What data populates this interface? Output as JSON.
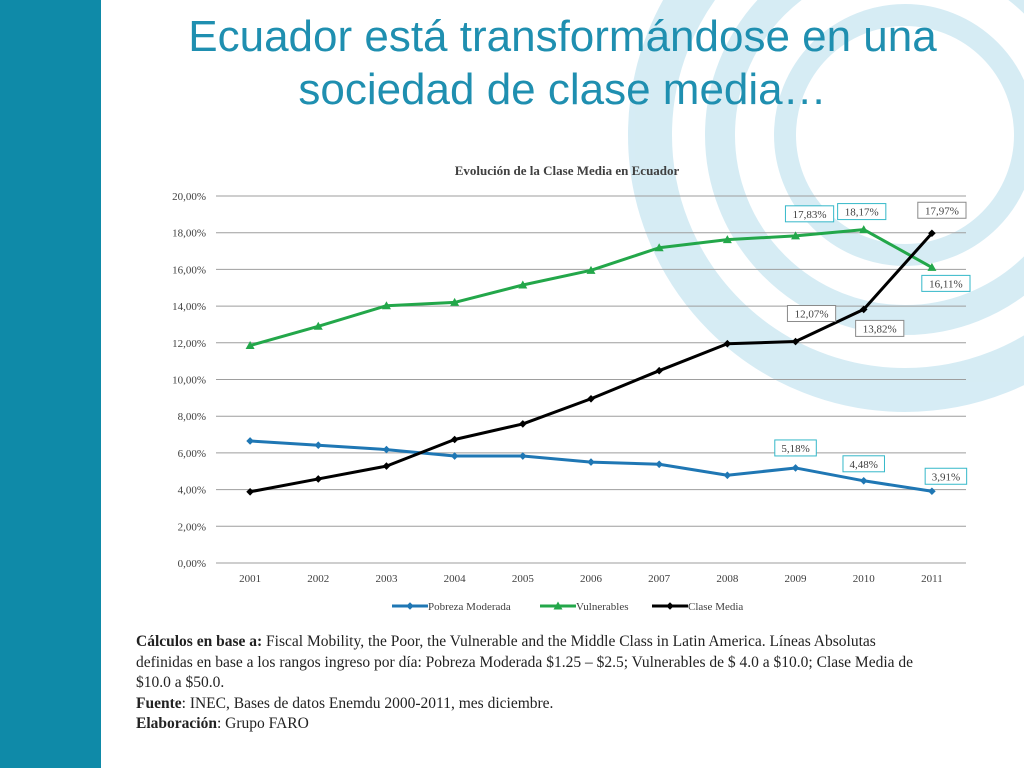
{
  "slide": {
    "title_line1": "Ecuador está transformándose en una",
    "title_line2": "sociedad de clase media…"
  },
  "colors": {
    "accent_bar": "#0f8aa8",
    "title": "#1f8fb0",
    "pobreza": "#1f77b4",
    "vulnerables": "#23a74a",
    "clase_media": "#000000",
    "grid": "#9e9e9e"
  },
  "chart_data": {
    "type": "line",
    "title": "Evolución de la Clase Media en Ecuador",
    "xlabel": "",
    "ylabel": "",
    "ylim": [
      0,
      20
    ],
    "y_tick_labels": [
      "0,00%",
      "2,00%",
      "4,00%",
      "6,00%",
      "8,00%",
      "10,00%",
      "12,00%",
      "14,00%",
      "16,00%",
      "18,00%",
      "20,00%"
    ],
    "categories": [
      "2001",
      "2002",
      "2003",
      "2004",
      "2005",
      "2006",
      "2007",
      "2008",
      "2009",
      "2010",
      "2011"
    ],
    "grid": true,
    "legend_position": "bottom",
    "series": [
      {
        "name": "Pobreza Moderada",
        "marker": "diamond",
        "color": "#1f77b4",
        "values": [
          6.65,
          6.42,
          6.18,
          5.83,
          5.83,
          5.5,
          5.38,
          4.78,
          5.18,
          4.48,
          3.91
        ],
        "labels": [
          {
            "index": 8,
            "text": "5,18%"
          },
          {
            "index": 9,
            "text": "4,48%"
          },
          {
            "index": 10,
            "text": "3,91%"
          }
        ]
      },
      {
        "name": "Vulnerables",
        "marker": "triangle",
        "color": "#23a74a",
        "values": [
          11.85,
          12.9,
          14.02,
          14.2,
          15.15,
          15.95,
          17.18,
          17.62,
          17.83,
          18.17,
          16.11
        ],
        "labels": [
          {
            "index": 8,
            "text": "17,83%"
          },
          {
            "index": 9,
            "text": "18,17%"
          },
          {
            "index": 10,
            "text": "16,11%"
          }
        ]
      },
      {
        "name": "Clase Media",
        "marker": "diamond",
        "color": "#000000",
        "values": [
          3.88,
          4.58,
          5.28,
          6.73,
          7.58,
          8.95,
          10.48,
          11.95,
          12.07,
          13.82,
          17.97
        ],
        "labels": [
          {
            "index": 8,
            "text": "12,07%"
          },
          {
            "index": 9,
            "text": "13,82%"
          },
          {
            "index": 10,
            "text": "17,97%"
          }
        ]
      }
    ]
  },
  "notes": {
    "line1_bold": "Cálculos en base a:",
    "line1_rest": " Fiscal Mobility, the Poor, the Vulnerable and the Middle Class in Latin America. Líneas Absolutas",
    "line2": "definidas en base a los rangos ingreso por día: Pobreza Moderada $1.25 – $2.5; Vulnerables de $ 4.0 a $10.0; Clase Media de",
    "line3": "$10.0 a $50.0.",
    "fuente_bold": "Fuente",
    "fuente_rest": ": INEC, Bases de datos Enemdu 2000-2011, mes diciembre.",
    "elab_bold": "Elaboración",
    "elab_rest": ": Grupo FARO"
  }
}
